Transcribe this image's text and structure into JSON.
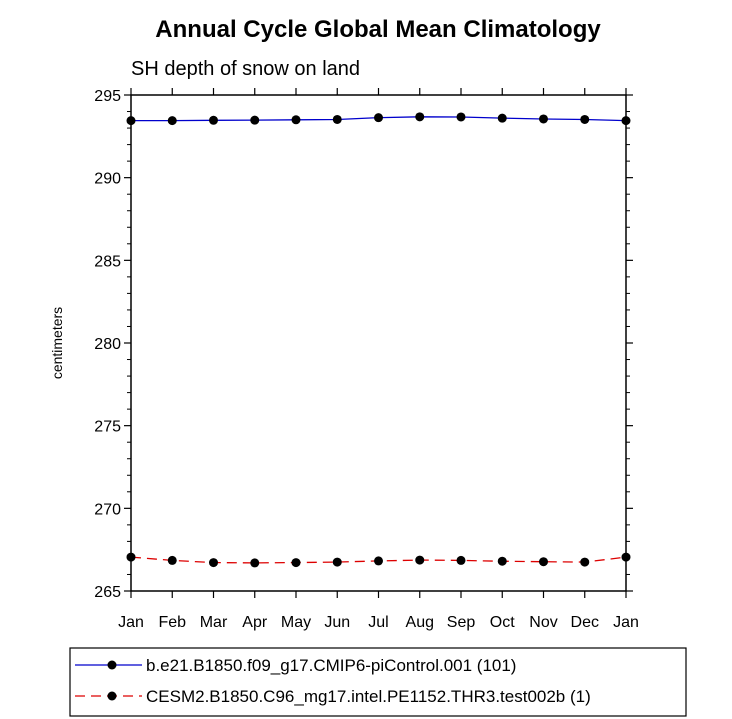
{
  "chart_data": {
    "type": "line",
    "title": "Annual Cycle Global Mean Climatology",
    "subtitle": "SH depth of snow on land",
    "xlabel": "",
    "ylabel": "centimeters",
    "categories": [
      "Jan",
      "Feb",
      "Mar",
      "Apr",
      "May",
      "Jun",
      "Jul",
      "Aug",
      "Sep",
      "Oct",
      "Nov",
      "Dec",
      "Jan"
    ],
    "ylim": [
      265,
      295
    ],
    "yticks": [
      265,
      270,
      275,
      280,
      285,
      290,
      295
    ],
    "legend_position": "bottom",
    "series": [
      {
        "name": "b.e21.B1850.f09_g17.CMIP6-piControl.001 (101)",
        "color": "#0000cc",
        "style": "solid",
        "values": [
          293.45,
          293.45,
          293.47,
          293.48,
          293.5,
          293.52,
          293.63,
          293.68,
          293.67,
          293.6,
          293.55,
          293.52,
          293.45
        ]
      },
      {
        "name": "CESM2.B1850.C96_mg17.intel.PE1152.THR3.test002b (1)",
        "color": "#dd0000",
        "style": "dashed",
        "values": [
          267.05,
          266.85,
          266.72,
          266.7,
          266.72,
          266.75,
          266.82,
          266.87,
          266.85,
          266.8,
          266.77,
          266.75,
          267.05
        ]
      }
    ]
  }
}
